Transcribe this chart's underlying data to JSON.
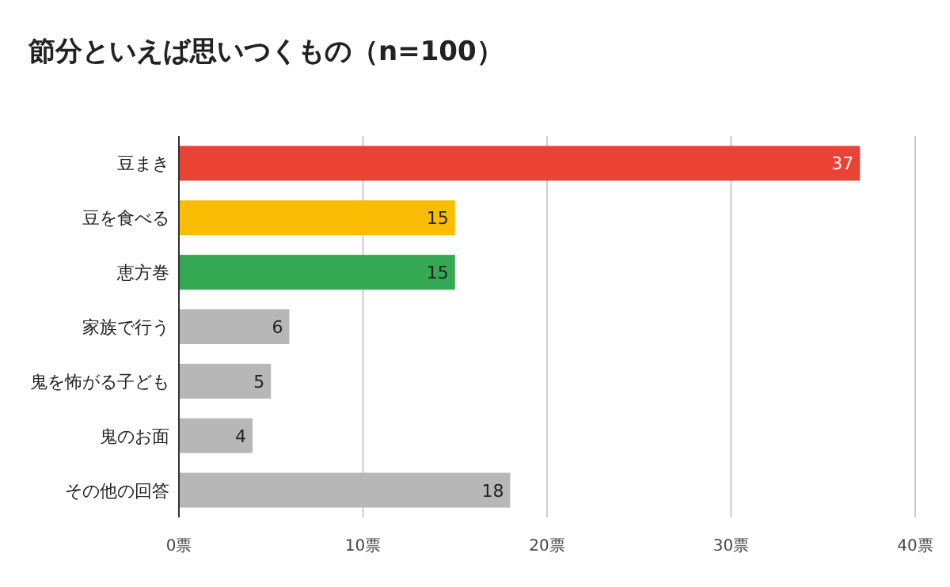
{
  "chart_data": {
    "type": "bar",
    "orientation": "horizontal",
    "title": "節分といえば思いつくもの（n=100）",
    "categories": [
      "豆まき",
      "豆を食べる",
      "恵方巻",
      "家族で行う",
      "鬼を怖がる子ども",
      "鬼のお面",
      "その他の回答"
    ],
    "values": [
      37,
      15,
      15,
      6,
      5,
      4,
      18
    ],
    "colors": [
      "#ea4335",
      "#fbbc04",
      "#34a853",
      "#b7b7b7",
      "#b7b7b7",
      "#b7b7b7",
      "#b7b7b7"
    ],
    "xlim": [
      0,
      40
    ],
    "xticks": [
      {
        "value": 0,
        "label": "0票"
      },
      {
        "value": 10,
        "label": "10票"
      },
      {
        "value": 20,
        "label": "20票"
      },
      {
        "value": 30,
        "label": "30票"
      },
      {
        "value": 40,
        "label": "40票"
      }
    ],
    "grid": "x",
    "data_labels": true
  }
}
